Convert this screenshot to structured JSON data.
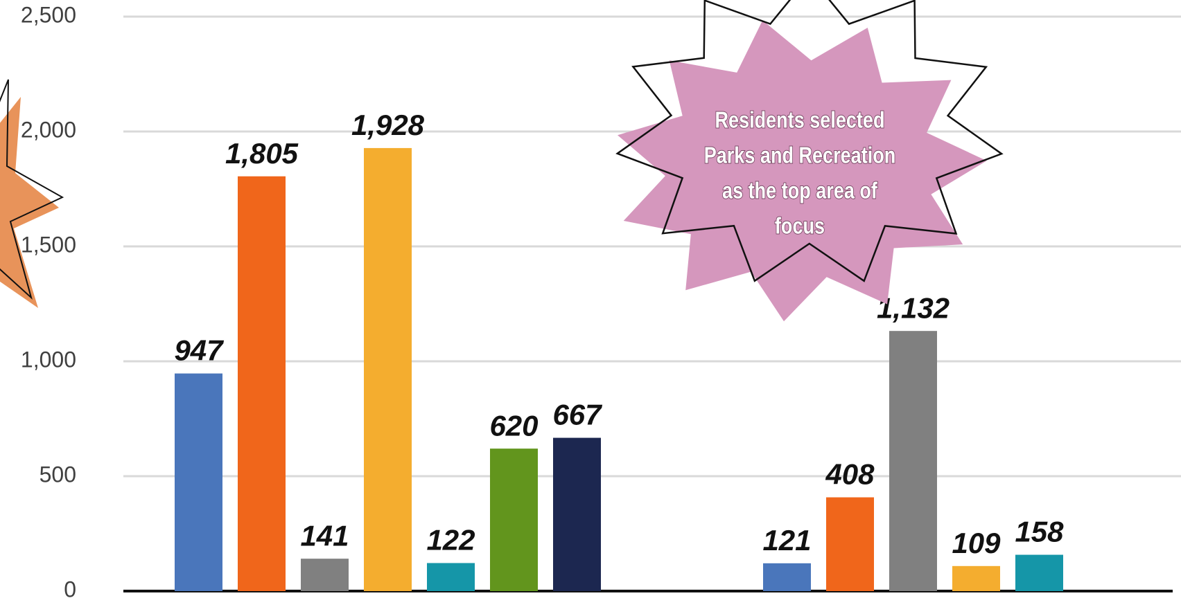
{
  "chart_data": {
    "type": "bar",
    "categories": [
      null,
      null
    ],
    "series": [
      {
        "color": "#4a76bb",
        "values": [
          947,
          121
        ],
        "value_labels": [
          "947",
          "121"
        ]
      },
      {
        "color": "#f0661b",
        "values": [
          1805,
          408
        ],
        "value_labels": [
          "1,805",
          "408"
        ]
      },
      {
        "color": "#808080",
        "values": [
          141,
          1132
        ],
        "value_labels": [
          "141",
          "1,132"
        ]
      },
      {
        "color": "#f4ad2f",
        "values": [
          1928,
          109
        ],
        "value_labels": [
          "1,928",
          "109"
        ]
      },
      {
        "color": "#1596a8",
        "values": [
          122,
          158
        ],
        "value_labels": [
          "122",
          "158"
        ]
      },
      {
        "color": "#62951d",
        "values": [
          620,
          null
        ],
        "value_labels": [
          "620",
          null
        ]
      },
      {
        "color": "#1c2750",
        "values": [
          667,
          null
        ],
        "value_labels": [
          "667",
          null
        ]
      }
    ],
    "ylim": [
      0,
      2500
    ],
    "yticks": [
      0,
      500,
      {
        "value": 1000,
        "label": "1,000"
      },
      {
        "value": 1500,
        "label": "1,500"
      },
      {
        "value": 2000,
        "label": "2,000"
      },
      {
        "value": 2500,
        "label": "2,500"
      }
    ],
    "grid": true,
    "annotation": [
      "Residents selected",
      "Parks and Recreation",
      "as the top area of",
      "focus"
    ]
  }
}
